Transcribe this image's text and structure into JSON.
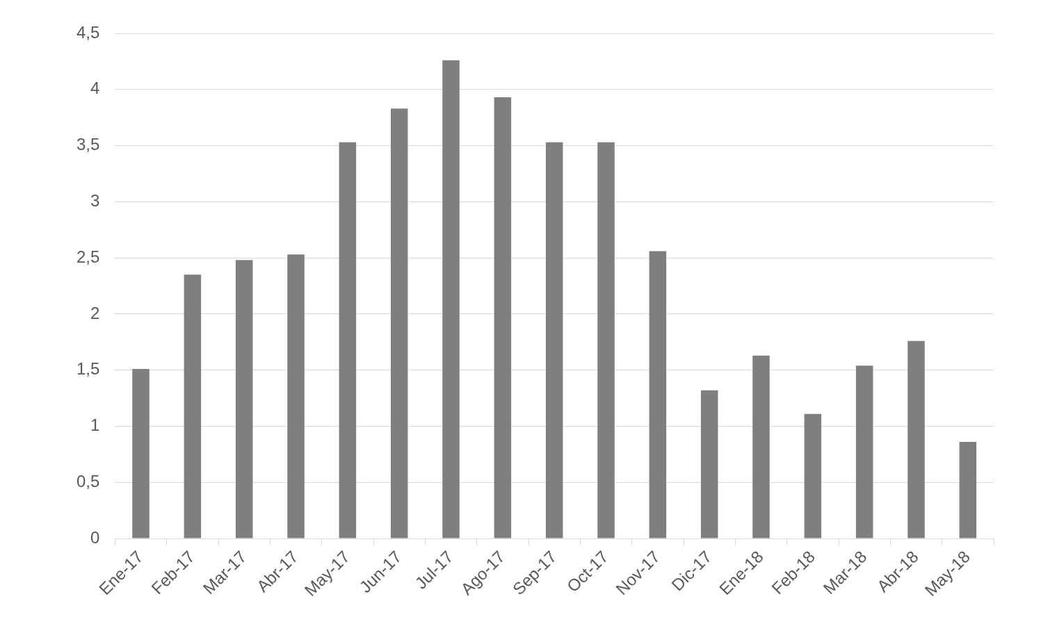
{
  "chart_data": {
    "type": "bar",
    "categories": [
      "Ene-17",
      "Feb-17",
      "Mar-17",
      "Abr-17",
      "May-17",
      "Jun-17",
      "Jul-17",
      "Ago-17",
      "Sep-17",
      "Oct-17",
      "Nov-17",
      "Dic-17",
      "Ene-18",
      "Feb-18",
      "Mar-18",
      "Abr-18",
      "May-18"
    ],
    "values": [
      1.51,
      2.35,
      2.48,
      2.53,
      3.53,
      3.83,
      4.26,
      3.93,
      3.53,
      3.53,
      2.56,
      1.32,
      1.63,
      1.11,
      1.54,
      1.76,
      0.86
    ],
    "color": "#7f7f7f",
    "ylim": [
      0,
      4.5
    ],
    "yticks": [
      0,
      {
        "value": 0.5,
        "label": "0,5"
      },
      1,
      {
        "value": 1.5,
        "label": "1,5"
      },
      2,
      {
        "value": 2.5,
        "label": "2,5"
      },
      3,
      {
        "value": 3.5,
        "label": "3,5"
      },
      4,
      {
        "value": 4.5,
        "label": "4,5"
      }
    ],
    "grid": "y"
  }
}
